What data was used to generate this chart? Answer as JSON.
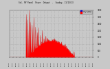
{
  "title": "Sol. PV Panel  Power  Output  -  Sunday, 11/13/13",
  "bg_color": "#C8C8C8",
  "plot_bg_color": "#C8C8C8",
  "grid_color": "#AAAAAA",
  "bar_color": "#FF0000",
  "legend_items": [
    {
      "label": "Max Power",
      "color": "#0000CC"
    },
    {
      "label": "Avg Power",
      "color": "#FF0000"
    }
  ],
  "ylim_max": 3500,
  "num_points": 288,
  "noise_seed": 7
}
